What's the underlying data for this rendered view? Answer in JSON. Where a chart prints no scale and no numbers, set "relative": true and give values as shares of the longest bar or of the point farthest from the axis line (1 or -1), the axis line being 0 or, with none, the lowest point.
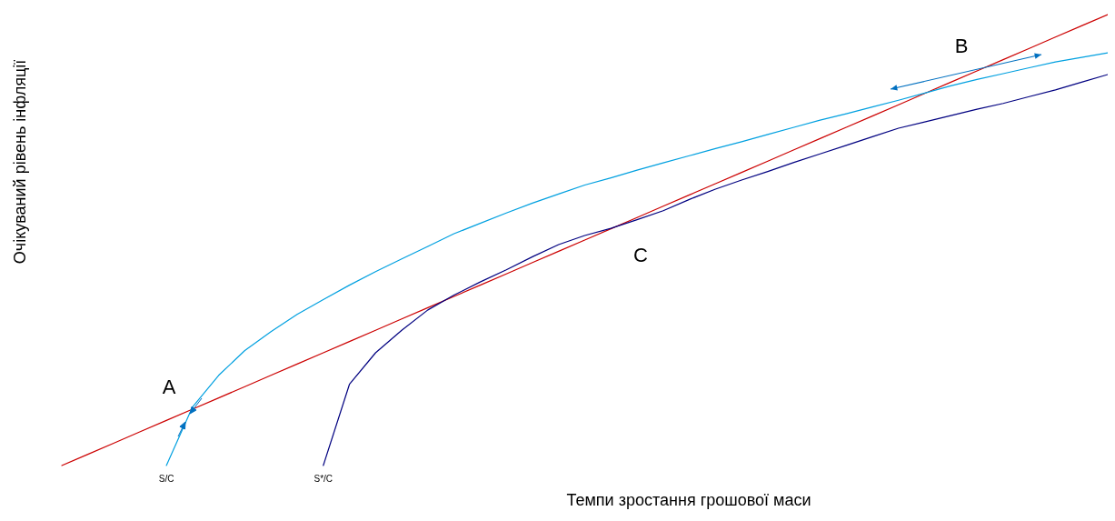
{
  "chart_data": {
    "type": "line",
    "relative": true,
    "xlabel": "Темпи зростання грошової маси",
    "ylabel": "Очікуваний рівень інфляції",
    "categories": [
      null,
      null,
      null,
      null,
      null,
      null,
      null,
      null,
      null,
      null,
      null,
      null,
      null,
      null,
      null,
      null,
      null,
      null,
      null,
      null,
      null,
      null,
      null,
      null,
      null,
      null,
      null,
      null,
      null,
      null,
      null,
      null,
      null,
      null,
      null,
      null,
      null,
      null,
      null,
      null,
      null
    ],
    "series": [
      {
        "color": "#cc0000",
        "values": [
          0,
          0.025,
          0.05,
          0.075,
          0.1,
          0.125,
          0.15,
          0.175,
          0.2,
          0.225,
          0.25,
          0.275,
          0.3,
          0.325,
          0.35,
          0.375,
          0.4,
          0.425,
          0.45,
          0.475,
          0.5,
          0.525,
          0.55,
          0.575,
          0.6,
          0.625,
          0.65,
          0.675,
          0.7,
          0.725,
          0.75,
          0.775,
          0.8,
          0.825,
          0.85,
          0.875,
          0.9,
          0.925,
          0.95,
          0.975,
          1
        ]
      },
      {
        "name": "S/C",
        "color": "#00a0e0",
        "values": [
          null,
          null,
          null,
          null,
          0,
          0.13,
          0.2,
          0.255,
          0.297,
          0.335,
          0.368,
          0.4,
          0.43,
          0.458,
          0.486,
          0.514,
          0.537,
          0.56,
          0.582,
          0.602,
          0.622,
          0.638,
          0.655,
          0.671,
          0.687,
          0.703,
          0.718,
          0.734,
          0.75,
          0.766,
          0.78,
          0.795,
          0.81,
          0.826,
          0.842,
          0.856,
          0.869,
          0.882,
          0.895,
          0.905,
          0.915
        ]
      },
      {
        "name": "S*/C",
        "color": "#000080",
        "values": [
          null,
          null,
          null,
          null,
          null,
          null,
          null,
          null,
          null,
          null,
          0,
          0.18,
          0.25,
          0.3,
          0.345,
          0.378,
          0.407,
          0.434,
          0.463,
          0.49,
          0.51,
          0.526,
          0.545,
          0.565,
          0.59,
          0.613,
          0.633,
          0.652,
          0.672,
          0.691,
          0.71,
          0.729,
          0.748,
          0.762,
          0.776,
          0.79,
          0.803,
          0.818,
          0.833,
          0.85,
          0.867
        ]
      }
    ],
    "annotations": [
      "A",
      "B",
      "C"
    ]
  }
}
